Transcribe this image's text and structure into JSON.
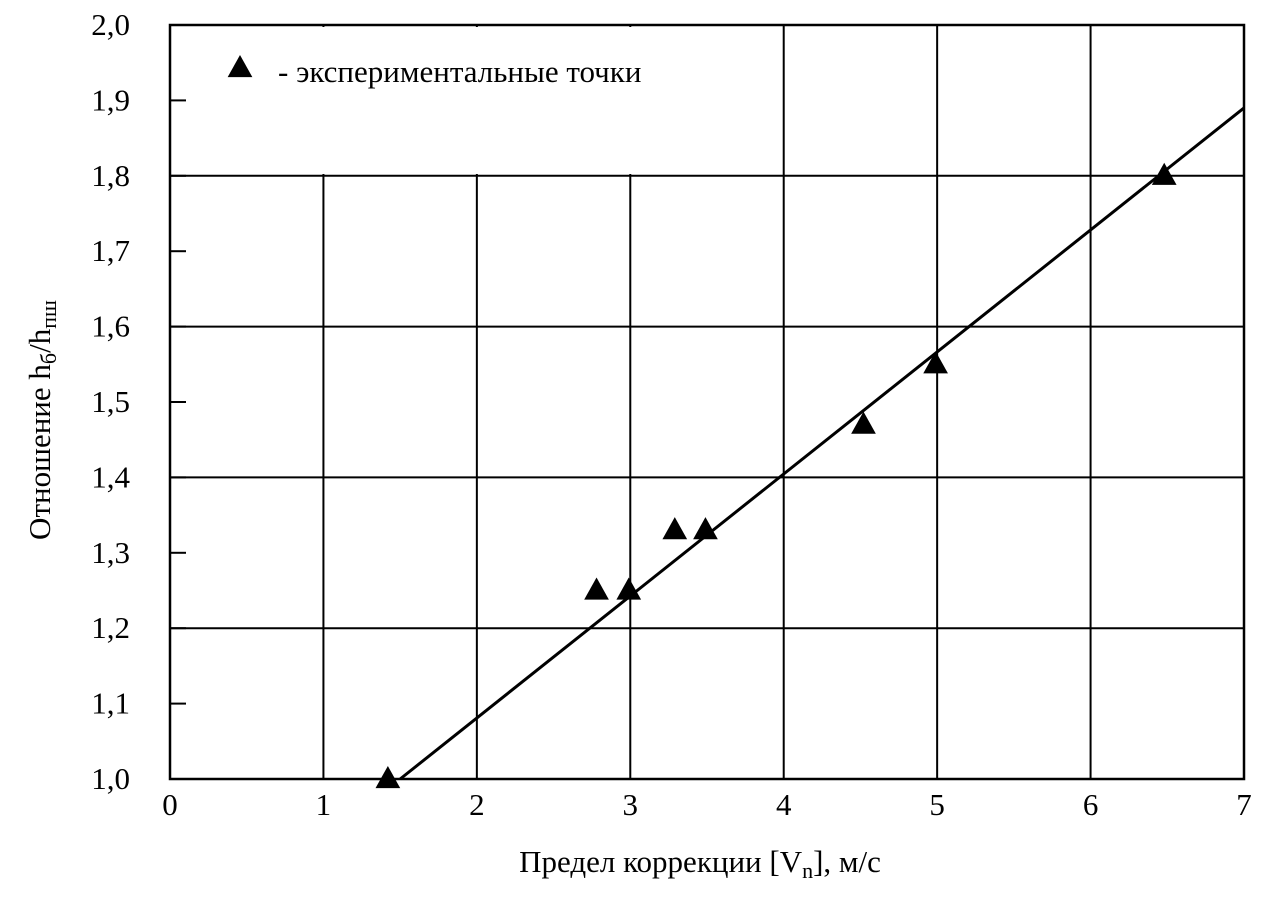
{
  "chart_data": {
    "type": "scatter",
    "xlabel": [
      "Предел коррекции [V",
      "n",
      "], м/с"
    ],
    "ylabel": [
      "Отношение h",
      "б",
      "/h",
      "пш"
    ],
    "series": [
      {
        "name": "- экспериментальные точки",
        "color": "#000000",
        "x": [
          1.42,
          2.78,
          2.99,
          3.29,
          3.49,
          4.52,
          4.99,
          6.48
        ],
        "values": [
          1.0,
          1.25,
          1.25,
          1.33,
          1.33,
          1.47,
          1.55,
          1.8
        ]
      }
    ],
    "line": {
      "color": "#000000",
      "x": [
        1.5,
        7
      ],
      "values": [
        1.0,
        1.89
      ]
    },
    "xlim": [
      0,
      7
    ],
    "xticks": [
      0,
      1,
      2,
      3,
      4,
      5,
      6,
      7
    ],
    "ylim": [
      1.0,
      2.0
    ],
    "yticks": [
      {
        "value": 1.0,
        "label": "1,0"
      },
      {
        "value": 1.1,
        "label": "1,1"
      },
      {
        "value": 1.2,
        "label": "1,2"
      },
      {
        "value": 1.3,
        "label": "1,3"
      },
      {
        "value": 1.4,
        "label": "1,4"
      },
      {
        "value": 1.5,
        "label": "1,5"
      },
      {
        "value": 1.6,
        "label": "1,6"
      },
      {
        "value": 1.7,
        "label": "1,7"
      },
      {
        "value": 1.8,
        "label": "1,8"
      },
      {
        "value": 1.9,
        "label": "1,9"
      },
      {
        "value": 2.0,
        "label": "2,0"
      }
    ],
    "ygridlines": [
      1.2,
      1.4,
      1.6,
      1.8
    ],
    "grid": true
  }
}
